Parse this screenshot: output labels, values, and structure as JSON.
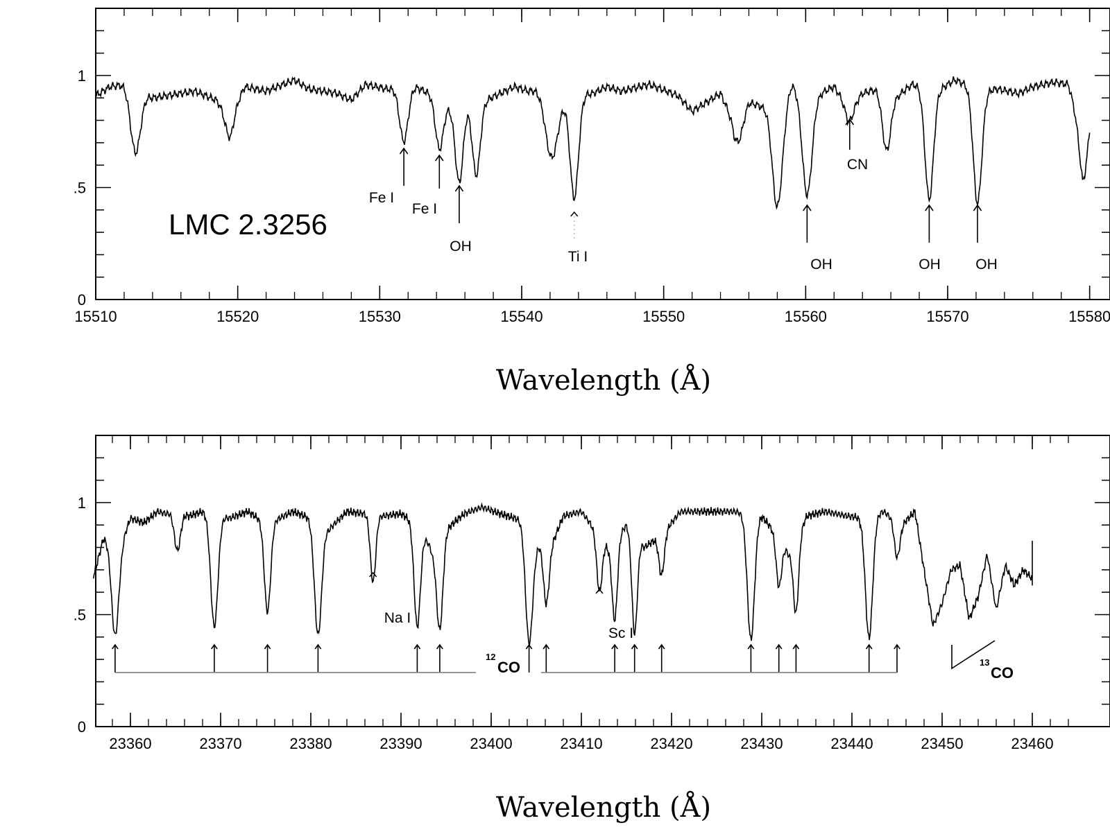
{
  "chart_data": [
    {
      "type": "line",
      "xlabel": "Wavelength (Å)",
      "ylabel": "",
      "xlim": [
        15510,
        15580
      ],
      "ylim": [
        0,
        1.3
      ],
      "xticks": [
        15510,
        15520,
        15530,
        15540,
        15550,
        15560,
        15570,
        15580
      ],
      "xtick_labels": [
        "15510",
        "15520",
        "15530",
        "15540",
        "15550",
        "15560",
        "15570",
        "15580"
      ],
      "yticks": [
        0,
        0.5,
        1
      ],
      "ytick_labels": [
        "0",
        ".5",
        "1"
      ],
      "annotation_text": "LMC 2.3256",
      "continuum": [
        [
          15510.0,
          0.91
        ],
        [
          15511.0,
          0.95
        ],
        [
          15512.0,
          0.96
        ],
        [
          15514.0,
          0.9
        ],
        [
          15515.0,
          0.91
        ],
        [
          15517.0,
          0.93
        ],
        [
          15518.5,
          0.89
        ],
        [
          15519.5,
          0.82
        ],
        [
          15520.5,
          0.95
        ],
        [
          15522.0,
          0.93
        ],
        [
          15524.0,
          0.98
        ],
        [
          15525.0,
          0.94
        ],
        [
          15527.0,
          0.92
        ],
        [
          15528.0,
          0.89
        ],
        [
          15529.0,
          0.96
        ],
        [
          15530.5,
          0.94
        ],
        [
          15532.5,
          0.95
        ],
        [
          15533.5,
          0.92
        ],
        [
          15535.0,
          0.86
        ],
        [
          15536.0,
          0.88
        ],
        [
          15537.5,
          0.89
        ],
        [
          15538.5,
          0.92
        ],
        [
          15539.5,
          0.95
        ],
        [
          15540.5,
          0.93
        ],
        [
          15541.5,
          0.95
        ],
        [
          15543.0,
          0.91
        ],
        [
          15545.0,
          0.92
        ],
        [
          15546.0,
          0.95
        ],
        [
          15547.0,
          0.93
        ],
        [
          15549.0,
          0.96
        ],
        [
          15551.0,
          0.91
        ],
        [
          15552.0,
          0.84
        ],
        [
          15553.0,
          0.88
        ],
        [
          15554.0,
          0.92
        ],
        [
          15555.0,
          0.78
        ],
        [
          15556.0,
          0.88
        ],
        [
          15557.0,
          0.86
        ],
        [
          15558.5,
          0.88
        ],
        [
          15559.0,
          0.96
        ],
        [
          15561.0,
          0.92
        ],
        [
          15562.0,
          0.95
        ],
        [
          15563.0,
          0.86
        ],
        [
          15564.0,
          0.92
        ],
        [
          15565.0,
          0.94
        ],
        [
          15566.5,
          0.91
        ],
        [
          15567.5,
          0.96
        ],
        [
          15569.5,
          0.94
        ],
        [
          15570.5,
          0.98
        ],
        [
          15572.5,
          0.93
        ],
        [
          15573.5,
          0.94
        ],
        [
          15575.0,
          0.92
        ],
        [
          15576.0,
          0.95
        ],
        [
          15577.5,
          0.97
        ],
        [
          15578.5,
          0.96
        ],
        [
          15579.5,
          0.72
        ],
        [
          15580.0,
          0.84
        ]
      ],
      "absorption_lines": [
        {
          "x": 15512.8,
          "depth": 0.28,
          "width": 0.35
        },
        {
          "x": 15519.4,
          "depth": 0.1,
          "width": 0.3
        },
        {
          "x": 15531.7,
          "depth": 0.24,
          "width": 0.3
        },
        {
          "x": 15534.2,
          "depth": 0.22,
          "width": 0.28
        },
        {
          "x": 15535.6,
          "depth": 0.35,
          "width": 0.28
        },
        {
          "x": 15536.8,
          "depth": 0.33,
          "width": 0.28
        },
        {
          "x": 15542.1,
          "depth": 0.3,
          "width": 0.45
        },
        {
          "x": 15543.7,
          "depth": 0.46,
          "width": 0.3
        },
        {
          "x": 15555.3,
          "depth": 0.1,
          "width": 0.3
        },
        {
          "x": 15558.0,
          "depth": 0.46,
          "width": 0.35
        },
        {
          "x": 15560.1,
          "depth": 0.47,
          "width": 0.35
        },
        {
          "x": 15563.1,
          "depth": 0.07,
          "width": 0.3
        },
        {
          "x": 15565.7,
          "depth": 0.26,
          "width": 0.3
        },
        {
          "x": 15568.7,
          "depth": 0.5,
          "width": 0.3
        },
        {
          "x": 15572.1,
          "depth": 0.51,
          "width": 0.3
        },
        {
          "x": 15579.6,
          "depth": 0.2,
          "width": 0.3
        }
      ],
      "line_ids": [
        {
          "label": "Fe I",
          "x": 15531.7
        },
        {
          "label": "Fe I",
          "x": 15534.2
        },
        {
          "label": "OH",
          "x": 15535.6
        },
        {
          "label": "Ti I",
          "x": 15543.7
        },
        {
          "label": "OH",
          "x": 15560.1
        },
        {
          "label": "CN",
          "x": 15563.1
        },
        {
          "label": "OH",
          "x": 15568.7
        },
        {
          "label": "OH",
          "x": 15572.1
        }
      ]
    },
    {
      "type": "line",
      "xlabel": "Wavelength (Å)",
      "ylabel": "",
      "xlim": [
        23355,
        23465
      ],
      "ylim": [
        0,
        1.3
      ],
      "xticks": [
        23360,
        23370,
        23380,
        23390,
        23400,
        23410,
        23420,
        23430,
        23440,
        23450,
        23460
      ],
      "xtick_labels": [
        "23360",
        "23370",
        "23380",
        "23390",
        "23400",
        "23410",
        "23420",
        "23430",
        "23440",
        "23450",
        "23460"
      ],
      "yticks": [
        0,
        0.5,
        1
      ],
      "ytick_labels": [
        "0",
        ".5",
        "1"
      ],
      "data_end": 23460,
      "continuum": [
        [
          23356.0,
          0.68
        ],
        [
          23357.0,
          0.84
        ],
        [
          23359.0,
          0.82
        ],
        [
          23360.0,
          0.93
        ],
        [
          23361.5,
          0.91
        ],
        [
          23363.0,
          0.96
        ],
        [
          23364.0,
          0.95
        ],
        [
          23365.0,
          0.97
        ],
        [
          23366.5,
          0.94
        ],
        [
          23368.0,
          0.96
        ],
        [
          23371.0,
          0.93
        ],
        [
          23373.0,
          0.96
        ],
        [
          23375.0,
          0.91
        ],
        [
          23376.5,
          0.93
        ],
        [
          23378.0,
          0.96
        ],
        [
          23380.0,
          0.93
        ],
        [
          23382.0,
          0.88
        ],
        [
          23384.0,
          0.96
        ],
        [
          23386.0,
          0.95
        ],
        [
          23388.0,
          0.94
        ],
        [
          23390.0,
          0.95
        ],
        [
          23392.0,
          0.9
        ],
        [
          23393.5,
          0.78
        ],
        [
          23395.0,
          0.88
        ],
        [
          23397.0,
          0.95
        ],
        [
          23399.0,
          0.98
        ],
        [
          23401.0,
          0.95
        ],
        [
          23403.5,
          0.92
        ],
        [
          23405.0,
          0.82
        ],
        [
          23406.5,
          0.79
        ],
        [
          23408.0,
          0.94
        ],
        [
          23410.0,
          0.96
        ],
        [
          23411.5,
          0.88
        ],
        [
          23413.0,
          0.8
        ],
        [
          23415.0,
          0.9
        ],
        [
          23417.0,
          0.8
        ],
        [
          23419.0,
          0.86
        ],
        [
          23421.0,
          0.96
        ],
        [
          23424.0,
          0.96
        ],
        [
          23427.0,
          0.96
        ],
        [
          23430.0,
          0.94
        ],
        [
          23432.0,
          0.84
        ],
        [
          23433.0,
          0.77
        ],
        [
          23435.0,
          0.94
        ],
        [
          23437.0,
          0.96
        ],
        [
          23439.5,
          0.94
        ],
        [
          23441.5,
          0.93
        ],
        [
          23443.5,
          0.96
        ],
        [
          23445.5,
          0.9
        ],
        [
          23447.0,
          0.96
        ],
        [
          23448.0,
          0.7
        ],
        [
          23449.0,
          0.45
        ],
        [
          23450.0,
          0.55
        ],
        [
          23451.0,
          0.7
        ],
        [
          23452.0,
          0.72
        ],
        [
          23453.0,
          0.48
        ],
        [
          23454.0,
          0.58
        ],
        [
          23455.0,
          0.77
        ],
        [
          23456.0,
          0.52
        ],
        [
          23457.0,
          0.72
        ],
        [
          23458.0,
          0.63
        ],
        [
          23459.0,
          0.7
        ],
        [
          23460.0,
          0.66
        ]
      ],
      "absorption_lines": [
        {
          "x": 23358.3,
          "depth": 0.42,
          "width": 0.4
        },
        {
          "x": 23365.2,
          "depth": 0.18,
          "width": 0.35
        },
        {
          "x": 23369.3,
          "depth": 0.5,
          "width": 0.4
        },
        {
          "x": 23375.2,
          "depth": 0.4,
          "width": 0.35
        },
        {
          "x": 23380.8,
          "depth": 0.5,
          "width": 0.4
        },
        {
          "x": 23386.9,
          "depth": 0.3,
          "width": 0.3
        },
        {
          "x": 23391.8,
          "depth": 0.46,
          "width": 0.35
        },
        {
          "x": 23394.3,
          "depth": 0.4,
          "width": 0.35
        },
        {
          "x": 23404.2,
          "depth": 0.5,
          "width": 0.4
        },
        {
          "x": 23406.1,
          "depth": 0.25,
          "width": 0.3
        },
        {
          "x": 23412.0,
          "depth": 0.25,
          "width": 0.3
        },
        {
          "x": 23413.7,
          "depth": 0.36,
          "width": 0.3
        },
        {
          "x": 23415.9,
          "depth": 0.44,
          "width": 0.3
        },
        {
          "x": 23418.9,
          "depth": 0.18,
          "width": 0.3
        },
        {
          "x": 23428.8,
          "depth": 0.56,
          "width": 0.4
        },
        {
          "x": 23431.9,
          "depth": 0.22,
          "width": 0.3
        },
        {
          "x": 23433.8,
          "depth": 0.33,
          "width": 0.3
        },
        {
          "x": 23441.9,
          "depth": 0.54,
          "width": 0.4
        },
        {
          "x": 23445.0,
          "depth": 0.16,
          "width": 0.3
        }
      ],
      "line_ids": [
        {
          "label": "Na I",
          "x": 23386.9
        },
        {
          "label": "Sc I",
          "x": 23412.0
        }
      ],
      "co12_label": "CO",
      "co12_sup": "12",
      "co12_arrows": [
        23358.3,
        23369.3,
        23375.2,
        23380.8,
        23391.8,
        23394.3,
        23404.2,
        23406.1,
        23413.7,
        23415.9,
        23418.9,
        23428.8,
        23431.9,
        23433.8,
        23441.9,
        23445.0
      ],
      "co13_label": "CO",
      "co13_sup": "13"
    }
  ]
}
